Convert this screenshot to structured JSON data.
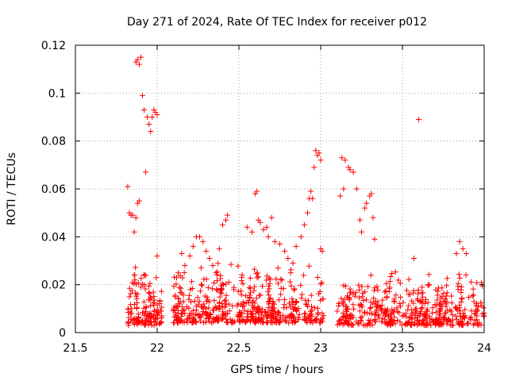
{
  "chart_data": {
    "type": "scatter",
    "title": "Day 271 of 2024, Rate Of TEC Index for receiver p012",
    "xlabel": "GPS time / hours",
    "ylabel": "ROTI / TECUs",
    "xlim": [
      21.5,
      24
    ],
    "ylim": [
      0,
      0.12
    ],
    "xticks": [
      21.5,
      22,
      22.5,
      23,
      23.5,
      24
    ],
    "xtick_labels": [
      "21.5",
      "22",
      "22.5",
      "23",
      "23.5",
      "24"
    ],
    "yticks": [
      0,
      0.02,
      0.04,
      0.06,
      0.08,
      0.1,
      0.12
    ],
    "ytick_labels": [
      "0",
      "0.02",
      "0.04",
      "0.06",
      "0.08",
      "0.1",
      "0.12"
    ],
    "grid": true,
    "marker": "+",
    "color": "#ff0000",
    "series": [
      {
        "name": "ROTI",
        "points": [
          [
            21.82,
            0.061
          ],
          [
            21.83,
            0.05
          ],
          [
            21.84,
            0.049
          ],
          [
            21.85,
            0.049
          ],
          [
            21.86,
            0.042
          ],
          [
            21.87,
            0.048
          ],
          [
            21.88,
            0.054
          ],
          [
            21.89,
            0.055
          ],
          [
            21.87,
            0.113
          ],
          [
            21.88,
            0.114
          ],
          [
            21.89,
            0.112
          ],
          [
            21.9,
            0.115
          ],
          [
            21.91,
            0.099
          ],
          [
            21.92,
            0.093
          ],
          [
            21.94,
            0.09
          ],
          [
            21.95,
            0.087
          ],
          [
            21.96,
            0.084
          ],
          [
            21.97,
            0.09
          ],
          [
            21.98,
            0.093
          ],
          [
            21.99,
            0.092
          ],
          [
            22.0,
            0.091
          ],
          [
            21.93,
            0.067
          ],
          [
            22.0,
            0.032
          ],
          [
            22.15,
            0.033
          ],
          [
            22.17,
            0.028
          ],
          [
            22.2,
            0.032
          ],
          [
            22.22,
            0.036
          ],
          [
            22.24,
            0.04
          ],
          [
            22.26,
            0.04
          ],
          [
            22.28,
            0.038
          ],
          [
            22.3,
            0.034
          ],
          [
            22.32,
            0.031
          ],
          [
            22.34,
            0.028
          ],
          [
            22.36,
            0.025
          ],
          [
            22.38,
            0.035
          ],
          [
            22.4,
            0.045
          ],
          [
            22.42,
            0.047
          ],
          [
            22.43,
            0.049
          ],
          [
            22.55,
            0.044
          ],
          [
            22.58,
            0.042
          ],
          [
            22.6,
            0.058
          ],
          [
            22.61,
            0.059
          ],
          [
            22.62,
            0.047
          ],
          [
            22.63,
            0.046
          ],
          [
            22.65,
            0.043
          ],
          [
            22.67,
            0.044
          ],
          [
            22.68,
            0.04
          ],
          [
            22.7,
            0.048
          ],
          [
            22.72,
            0.038
          ],
          [
            22.75,
            0.037
          ],
          [
            22.78,
            0.034
          ],
          [
            22.8,
            0.031
          ],
          [
            22.83,
            0.029
          ],
          [
            22.85,
            0.036
          ],
          [
            22.88,
            0.04
          ],
          [
            22.9,
            0.045
          ],
          [
            22.92,
            0.05
          ],
          [
            22.93,
            0.056
          ],
          [
            22.94,
            0.059
          ],
          [
            22.95,
            0.056
          ],
          [
            22.96,
            0.069
          ],
          [
            22.97,
            0.076
          ],
          [
            22.98,
            0.074
          ],
          [
            22.99,
            0.075
          ],
          [
            23.0,
            0.072
          ],
          [
            23.0,
            0.035
          ],
          [
            23.01,
            0.034
          ],
          [
            23.12,
            0.057
          ],
          [
            23.13,
            0.073
          ],
          [
            23.14,
            0.06
          ],
          [
            23.15,
            0.072
          ],
          [
            23.17,
            0.069
          ],
          [
            23.18,
            0.068
          ],
          [
            23.2,
            0.067
          ],
          [
            23.22,
            0.06
          ],
          [
            23.24,
            0.047
          ],
          [
            23.25,
            0.042
          ],
          [
            23.27,
            0.052
          ],
          [
            23.28,
            0.054
          ],
          [
            23.3,
            0.057
          ],
          [
            23.31,
            0.058
          ],
          [
            23.32,
            0.048
          ],
          [
            23.33,
            0.039
          ],
          [
            23.6,
            0.089
          ],
          [
            23.57,
            0.031
          ],
          [
            23.83,
            0.033
          ],
          [
            23.85,
            0.038
          ],
          [
            23.87,
            0.035
          ],
          [
            23.89,
            0.033
          ]
        ],
        "bands": [
          {
            "x_range": [
              21.82,
              22.03
            ],
            "y_range": [
              0.003,
              0.03
            ],
            "count": 150
          },
          {
            "x_range": [
              22.1,
              23.02
            ],
            "y_range": [
              0.004,
              0.03
            ],
            "count": 520
          },
          {
            "x_range": [
              23.1,
              24.0
            ],
            "y_range": [
              0.003,
              0.027
            ],
            "count": 480
          }
        ]
      }
    ]
  }
}
